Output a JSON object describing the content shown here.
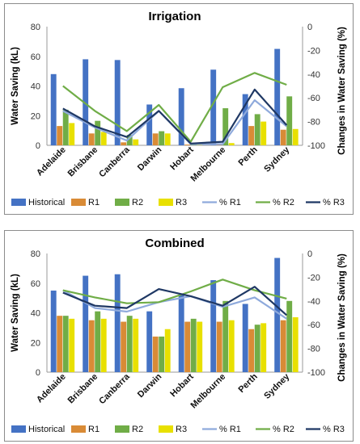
{
  "chart_data": [
    {
      "type": "bar",
      "title": "Irrigation",
      "ylabel": "Water Saving (kL)",
      "y2label": "Changes in Water Saving (%)",
      "ylim": [
        0,
        80
      ],
      "y2lim": [
        -100,
        0
      ],
      "yticks": [
        "0",
        "20",
        "40",
        "60",
        "80"
      ],
      "y2ticks": [
        "-100",
        "-80",
        "-60",
        "-40",
        "-20",
        "0"
      ],
      "categories": [
        "Adelaide",
        "Brisbane",
        "Canberra",
        "Darwin",
        "Hobart",
        "Melbourne",
        "Perth",
        "Sydney"
      ],
      "series": [
        {
          "name": "Historical",
          "kind": "bar",
          "axis": "left",
          "color": "#4472c4",
          "values": [
            48,
            58,
            57.5,
            27.5,
            38.5,
            51,
            34.5,
            65
          ]
        },
        {
          "name": "R1",
          "kind": "bar",
          "axis": "left",
          "color": "#d98b36",
          "values": [
            13,
            8,
            2,
            8,
            0.5,
            0.5,
            13,
            10.5
          ]
        },
        {
          "name": "R2",
          "kind": "bar",
          "axis": "left",
          "color": "#70ad47",
          "values": [
            24,
            16.5,
            7,
            9.5,
            1,
            25,
            21,
            33
          ]
        },
        {
          "name": "R3",
          "kind": "bar",
          "axis": "left",
          "color": "#e8e000",
          "values": [
            15,
            9,
            4,
            8,
            0.5,
            1.5,
            16,
            11
          ]
        },
        {
          "name": "% R1",
          "kind": "line",
          "axis": "right",
          "color": "#8faadc",
          "values": [
            -71,
            -85,
            -96,
            -71,
            -99,
            -99,
            -62,
            -84
          ]
        },
        {
          "name": "% R2",
          "kind": "line",
          "axis": "right",
          "color": "#70ad47",
          "values": [
            -50,
            -71,
            -88,
            -66,
            -97,
            -51,
            -39,
            -49
          ]
        },
        {
          "name": "% R3",
          "kind": "line",
          "axis": "right",
          "color": "#1f3864",
          "values": [
            -69,
            -84,
            -93,
            -71,
            -98.5,
            -97,
            -53,
            -83
          ]
        }
      ],
      "legend": "bottom"
    },
    {
      "type": "bar",
      "title": "Combined",
      "ylabel": "Water Saving (kL)",
      "y2label": "Changes in Water Saving (%)",
      "ylim": [
        0,
        80
      ],
      "y2lim": [
        -100,
        0
      ],
      "yticks": [
        "0",
        "20",
        "40",
        "60",
        "80"
      ],
      "y2ticks": [
        "-100",
        "-80",
        "-60",
        "-40",
        "-20",
        "0"
      ],
      "categories": [
        "Adelaide",
        "Brisbane",
        "Canberra",
        "Darwin",
        "Hobart",
        "Melbourne",
        "Perth",
        "Sydney"
      ],
      "series": [
        {
          "name": "Historical",
          "kind": "bar",
          "axis": "left",
          "color": "#4472c4",
          "values": [
            55,
            65,
            66,
            41,
            53,
            62,
            46,
            77
          ]
        },
        {
          "name": "R1",
          "kind": "bar",
          "axis": "left",
          "color": "#d98b36",
          "values": [
            38,
            35,
            34,
            24,
            34,
            34,
            29,
            35
          ]
        },
        {
          "name": "R2",
          "kind": "bar",
          "axis": "left",
          "color": "#70ad47",
          "values": [
            38,
            41,
            38,
            24,
            36,
            48,
            32,
            48
          ]
        },
        {
          "name": "R3",
          "kind": "bar",
          "axis": "left",
          "color": "#e8e000",
          "values": [
            36,
            36,
            36,
            29,
            34,
            35,
            33,
            37
          ]
        },
        {
          "name": "% R1",
          "kind": "line",
          "axis": "right",
          "color": "#8faadc",
          "values": [
            -31,
            -46,
            -49,
            -41,
            -36,
            -45,
            -37,
            -55
          ]
        },
        {
          "name": "% R2",
          "kind": "line",
          "axis": "right",
          "color": "#70ad47",
          "values": [
            -31,
            -37,
            -42,
            -41,
            -32,
            -22,
            -31,
            -38
          ]
        },
        {
          "name": "% R3",
          "kind": "line",
          "axis": "right",
          "color": "#1f3864",
          "values": [
            -33,
            -44,
            -46,
            -30,
            -36,
            -44,
            -28,
            -52
          ]
        }
      ],
      "legend": "bottom"
    }
  ]
}
